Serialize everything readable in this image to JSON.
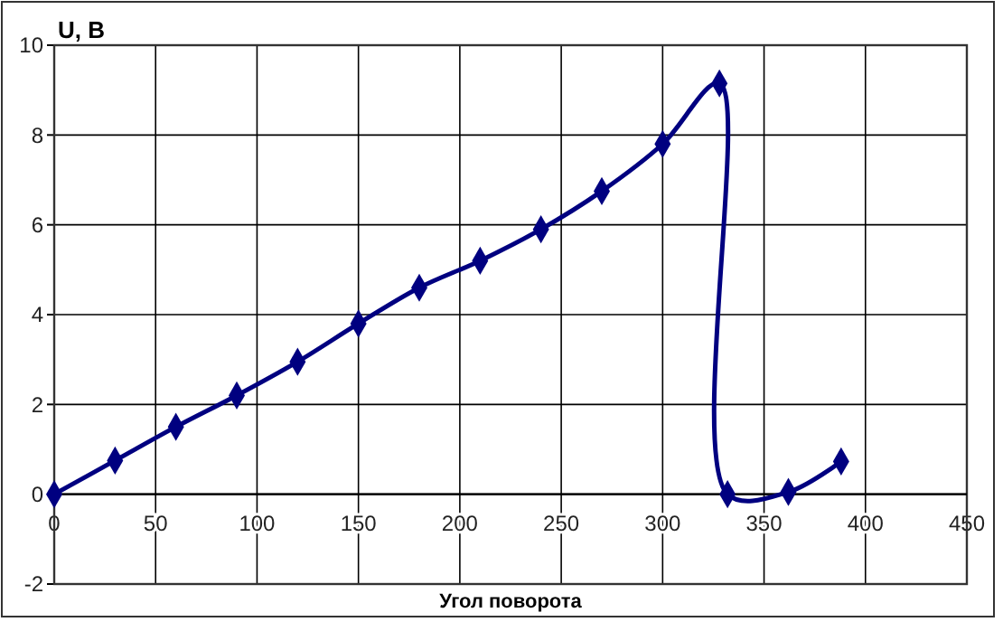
{
  "chart_data": {
    "type": "line",
    "ylabel": "U, B",
    "xlabel": "Угол поворота",
    "series": [
      {
        "color": "#000080",
        "x": [
          0,
          30,
          60,
          90,
          120,
          150,
          180,
          210,
          240,
          270,
          300,
          328,
          332,
          362,
          388
        ],
        "values": [
          0,
          0.75,
          1.5,
          2.2,
          2.95,
          3.8,
          4.6,
          5.2,
          5.9,
          6.75,
          7.8,
          9.15,
          0,
          0.05,
          0.73
        ]
      }
    ],
    "xlim": [
      0,
      450
    ],
    "xticks": [
      0,
      50,
      100,
      150,
      200,
      250,
      300,
      350,
      400,
      450
    ],
    "ylim": [
      -2,
      10
    ],
    "yticks": [
      -2,
      0,
      2,
      4,
      6,
      8,
      10
    ],
    "grid": true,
    "marker": "diamond",
    "line_style": "solid"
  }
}
